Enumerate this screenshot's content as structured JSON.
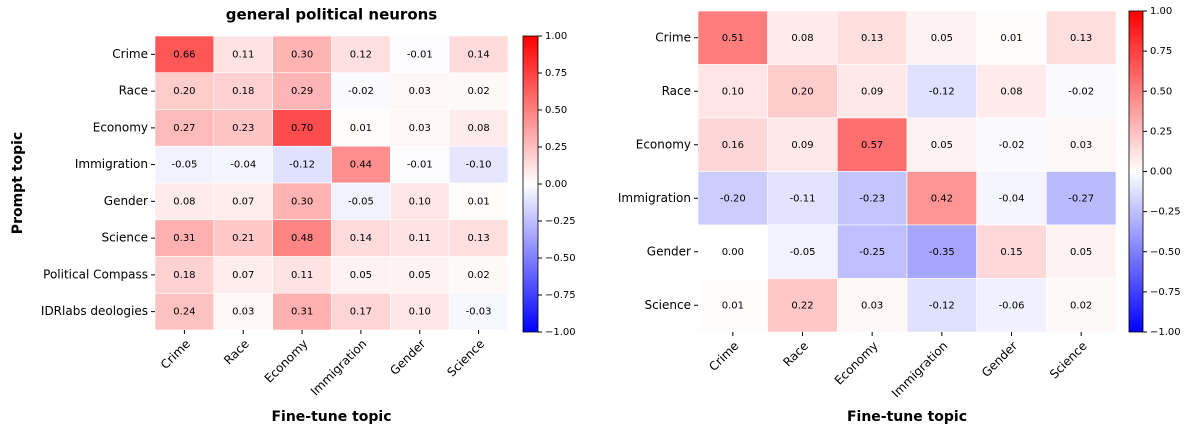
{
  "chart_data": [
    {
      "type": "heatmap",
      "title": "general political neurons",
      "x_label": "Fine-tune topic",
      "y_label": "Prompt topic",
      "colormap": "bwr",
      "rows": [
        "Crime",
        "Race",
        "Economy",
        "Immigration",
        "Gender",
        "Science",
        "Political Compass",
        "IDRlabs deologies "
      ],
      "columns": [
        "Crime",
        "Race",
        "Economy",
        "Immigration",
        "Gender",
        "Science"
      ],
      "values": [
        [
          0.66,
          0.11,
          0.3,
          0.12,
          -0.01,
          0.14
        ],
        [
          0.2,
          0.18,
          0.29,
          -0.02,
          0.03,
          0.02
        ],
        [
          0.27,
          0.23,
          0.7,
          0.01,
          0.03,
          0.08
        ],
        [
          -0.05,
          -0.04,
          -0.12,
          0.44,
          -0.01,
          -0.1
        ],
        [
          0.08,
          0.07,
          0.3,
          -0.05,
          0.1,
          0.01
        ],
        [
          0.31,
          0.21,
          0.48,
          0.14,
          0.11,
          0.13
        ],
        [
          0.18,
          0.07,
          0.11,
          0.05,
          0.05,
          0.02
        ],
        [
          0.24,
          0.03,
          0.31,
          0.17,
          0.1,
          -0.03
        ]
      ],
      "value_labels": [
        [
          "0.66",
          "0.11",
          "0.30",
          "0.12",
          "-0.01",
          "0.14"
        ],
        [
          "0.20",
          "0.18",
          "0.29",
          "-0.02",
          "0.03",
          "0.02"
        ],
        [
          "0.27",
          "0.23",
          "0.70",
          "0.01",
          "0.03",
          "0.08"
        ],
        [
          "-0.05",
          "-0.04",
          "-0.12",
          "0.44",
          "-0.01",
          "-0.10"
        ],
        [
          "0.08",
          "0.07",
          "0.30",
          "-0.05",
          "0.10",
          "0.01"
        ],
        [
          "0.31",
          "0.21",
          "0.48",
          "0.14",
          "0.11",
          "0.13"
        ],
        [
          "0.18",
          "0.07",
          "0.11",
          "0.05",
          "0.05",
          "0.02"
        ],
        [
          "0.24",
          "0.03",
          "0.31",
          "0.17",
          "0.10",
          "-0.03"
        ]
      ],
      "zlim": [
        -1,
        1
      ],
      "colorbar_ticks": [
        {
          "value": -1,
          "label": "−1.00"
        },
        {
          "value": -0.75,
          "label": "−0.75"
        },
        {
          "value": -0.5,
          "label": "−0.50"
        },
        {
          "value": -0.25,
          "label": "−0.25"
        },
        {
          "value": 0,
          "label": "0.00"
        },
        {
          "value": 0.25,
          "label": "0.25"
        },
        {
          "value": 0.5,
          "label": "0.50"
        },
        {
          "value": 0.75,
          "label": "0.75"
        },
        {
          "value": 1,
          "label": "1.00"
        }
      ]
    },
    {
      "type": "heatmap",
      "x_label": "Fine-tune topic",
      "colormap": "bwr",
      "rows": [
        "Crime",
        "Race",
        "Economy",
        "Immigration",
        "Gender",
        "Science"
      ],
      "columns": [
        "Crime",
        "Race",
        "Economy",
        "Immigration",
        "Gender",
        "Science"
      ],
      "values": [
        [
          0.51,
          0.08,
          0.13,
          0.05,
          0.01,
          0.13
        ],
        [
          0.1,
          0.2,
          0.09,
          -0.12,
          0.08,
          -0.02
        ],
        [
          0.16,
          0.09,
          0.57,
          0.05,
          -0.02,
          0.03
        ],
        [
          -0.2,
          -0.11,
          -0.23,
          0.42,
          -0.04,
          -0.27
        ],
        [
          0.0,
          -0.05,
          -0.25,
          -0.35,
          0.15,
          0.05
        ],
        [
          0.01,
          0.22,
          0.03,
          -0.12,
          -0.06,
          0.02
        ]
      ],
      "value_labels": [
        [
          "0.51",
          "0.08",
          "0.13",
          "0.05",
          "0.01",
          "0.13"
        ],
        [
          "0.10",
          "0.20",
          "0.09",
          "-0.12",
          "0.08",
          "-0.02"
        ],
        [
          "0.16",
          "0.09",
          "0.57",
          "0.05",
          "-0.02",
          "0.03"
        ],
        [
          "-0.20",
          "-0.11",
          "-0.23",
          "0.42",
          "-0.04",
          "-0.27"
        ],
        [
          "0.00",
          "-0.05",
          "-0.25",
          "-0.35",
          "0.15",
          "0.05"
        ],
        [
          "0.01",
          "0.22",
          "0.03",
          "-0.12",
          "-0.06",
          "0.02"
        ]
      ],
      "zlim": [
        -1,
        1
      ],
      "colorbar_ticks": [
        {
          "value": -1,
          "label": "−1.00"
        },
        {
          "value": -0.75,
          "label": "−0.75"
        },
        {
          "value": -0.5,
          "label": "−0.50"
        },
        {
          "value": -0.25,
          "label": "−0.25"
        },
        {
          "value": 0,
          "label": "0.00"
        },
        {
          "value": 0.25,
          "label": "0.25"
        },
        {
          "value": 0.5,
          "label": "0.50"
        },
        {
          "value": 0.75,
          "label": "0.75"
        },
        {
          "value": 1,
          "label": "1.00"
        }
      ]
    }
  ]
}
